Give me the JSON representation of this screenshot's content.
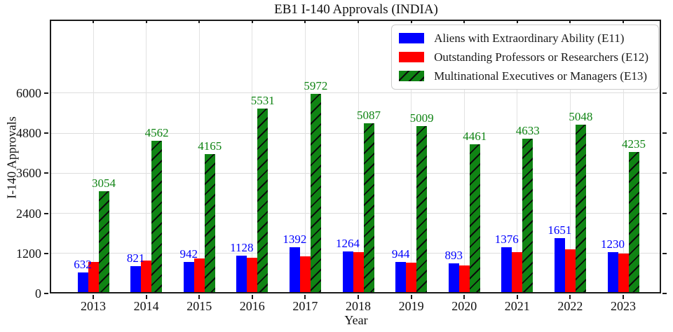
{
  "chart_data": {
    "type": "bar",
    "title": "EB1 I-140 Approvals (INDIA)",
    "xlabel": "Year",
    "ylabel": "I-140 Approvals",
    "categories": [
      "2013",
      "2014",
      "2015",
      "2016",
      "2017",
      "2018",
      "2019",
      "2020",
      "2021",
      "2022",
      "2023"
    ],
    "yticks": [
      0,
      1200,
      2400,
      3600,
      4800,
      6000
    ],
    "ylim": [
      0,
      8200
    ],
    "grid": true,
    "legend_position": "upper-right",
    "series": [
      {
        "name": "Aliens with Extraordinary Ability (E11)",
        "color": "#0000ff",
        "hatch": false,
        "show_value_labels": true,
        "values": [
          632,
          821,
          942,
          1128,
          1392,
          1264,
          944,
          893,
          1376,
          1651,
          1230
        ]
      },
      {
        "name": "Outstanding Professors or Researchers (E12)",
        "color": "#ff0000",
        "hatch": false,
        "show_value_labels": false,
        "values": [
          950,
          980,
          1040,
          1060,
          1120,
          1240,
          920,
          830,
          1240,
          1330,
          1190
        ]
      },
      {
        "name": "Multinational Executives or Managers (E13)",
        "color": "#108414",
        "hatch": true,
        "show_value_labels": true,
        "values": [
          3054,
          4562,
          4165,
          5531,
          5972,
          5087,
          5009,
          4461,
          4633,
          5048,
          4235
        ]
      }
    ]
  }
}
